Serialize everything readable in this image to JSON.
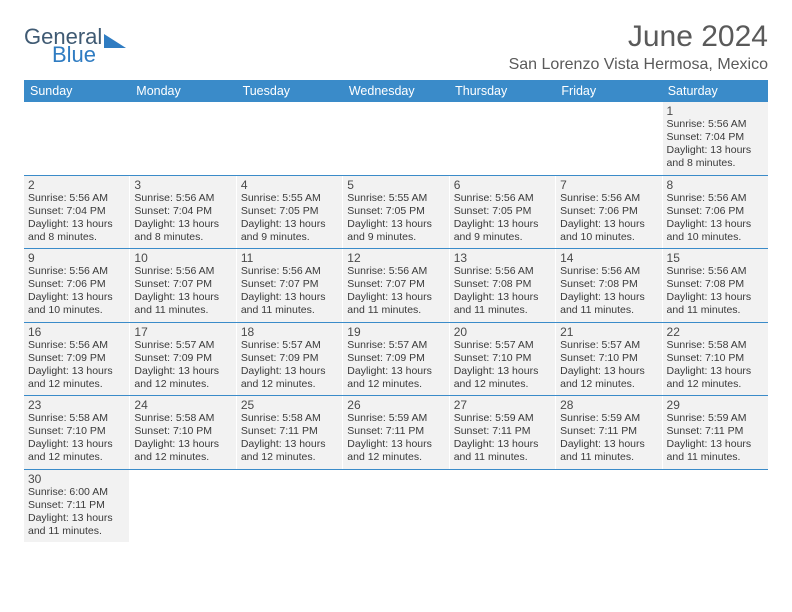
{
  "logo": {
    "line1": "General",
    "line2": "Blue"
  },
  "title": "June 2024",
  "location": "San Lorenzo Vista Hermosa, Mexico",
  "colors": {
    "header_bg": "#3a8bc9",
    "header_text": "#ffffff",
    "cell_bg": "#f2f2f2",
    "rule": "#3a8bc9",
    "logo_primary": "#3f5a73",
    "logo_accent": "#2f7cc2"
  },
  "day_labels": [
    "Sunday",
    "Monday",
    "Tuesday",
    "Wednesday",
    "Thursday",
    "Friday",
    "Saturday"
  ],
  "weeks": [
    [
      null,
      null,
      null,
      null,
      null,
      null,
      {
        "n": "1",
        "sr": "Sunrise: 5:56 AM",
        "ss": "Sunset: 7:04 PM",
        "d1": "Daylight: 13 hours",
        "d2": "and 8 minutes."
      }
    ],
    [
      {
        "n": "2",
        "sr": "Sunrise: 5:56 AM",
        "ss": "Sunset: 7:04 PM",
        "d1": "Daylight: 13 hours",
        "d2": "and 8 minutes."
      },
      {
        "n": "3",
        "sr": "Sunrise: 5:56 AM",
        "ss": "Sunset: 7:04 PM",
        "d1": "Daylight: 13 hours",
        "d2": "and 8 minutes."
      },
      {
        "n": "4",
        "sr": "Sunrise: 5:55 AM",
        "ss": "Sunset: 7:05 PM",
        "d1": "Daylight: 13 hours",
        "d2": "and 9 minutes."
      },
      {
        "n": "5",
        "sr": "Sunrise: 5:55 AM",
        "ss": "Sunset: 7:05 PM",
        "d1": "Daylight: 13 hours",
        "d2": "and 9 minutes."
      },
      {
        "n": "6",
        "sr": "Sunrise: 5:56 AM",
        "ss": "Sunset: 7:05 PM",
        "d1": "Daylight: 13 hours",
        "d2": "and 9 minutes."
      },
      {
        "n": "7",
        "sr": "Sunrise: 5:56 AM",
        "ss": "Sunset: 7:06 PM",
        "d1": "Daylight: 13 hours",
        "d2": "and 10 minutes."
      },
      {
        "n": "8",
        "sr": "Sunrise: 5:56 AM",
        "ss": "Sunset: 7:06 PM",
        "d1": "Daylight: 13 hours",
        "d2": "and 10 minutes."
      }
    ],
    [
      {
        "n": "9",
        "sr": "Sunrise: 5:56 AM",
        "ss": "Sunset: 7:06 PM",
        "d1": "Daylight: 13 hours",
        "d2": "and 10 minutes."
      },
      {
        "n": "10",
        "sr": "Sunrise: 5:56 AM",
        "ss": "Sunset: 7:07 PM",
        "d1": "Daylight: 13 hours",
        "d2": "and 11 minutes."
      },
      {
        "n": "11",
        "sr": "Sunrise: 5:56 AM",
        "ss": "Sunset: 7:07 PM",
        "d1": "Daylight: 13 hours",
        "d2": "and 11 minutes."
      },
      {
        "n": "12",
        "sr": "Sunrise: 5:56 AM",
        "ss": "Sunset: 7:07 PM",
        "d1": "Daylight: 13 hours",
        "d2": "and 11 minutes."
      },
      {
        "n": "13",
        "sr": "Sunrise: 5:56 AM",
        "ss": "Sunset: 7:08 PM",
        "d1": "Daylight: 13 hours",
        "d2": "and 11 minutes."
      },
      {
        "n": "14",
        "sr": "Sunrise: 5:56 AM",
        "ss": "Sunset: 7:08 PM",
        "d1": "Daylight: 13 hours",
        "d2": "and 11 minutes."
      },
      {
        "n": "15",
        "sr": "Sunrise: 5:56 AM",
        "ss": "Sunset: 7:08 PM",
        "d1": "Daylight: 13 hours",
        "d2": "and 11 minutes."
      }
    ],
    [
      {
        "n": "16",
        "sr": "Sunrise: 5:56 AM",
        "ss": "Sunset: 7:09 PM",
        "d1": "Daylight: 13 hours",
        "d2": "and 12 minutes."
      },
      {
        "n": "17",
        "sr": "Sunrise: 5:57 AM",
        "ss": "Sunset: 7:09 PM",
        "d1": "Daylight: 13 hours",
        "d2": "and 12 minutes."
      },
      {
        "n": "18",
        "sr": "Sunrise: 5:57 AM",
        "ss": "Sunset: 7:09 PM",
        "d1": "Daylight: 13 hours",
        "d2": "and 12 minutes."
      },
      {
        "n": "19",
        "sr": "Sunrise: 5:57 AM",
        "ss": "Sunset: 7:09 PM",
        "d1": "Daylight: 13 hours",
        "d2": "and 12 minutes."
      },
      {
        "n": "20",
        "sr": "Sunrise: 5:57 AM",
        "ss": "Sunset: 7:10 PM",
        "d1": "Daylight: 13 hours",
        "d2": "and 12 minutes."
      },
      {
        "n": "21",
        "sr": "Sunrise: 5:57 AM",
        "ss": "Sunset: 7:10 PM",
        "d1": "Daylight: 13 hours",
        "d2": "and 12 minutes."
      },
      {
        "n": "22",
        "sr": "Sunrise: 5:58 AM",
        "ss": "Sunset: 7:10 PM",
        "d1": "Daylight: 13 hours",
        "d2": "and 12 minutes."
      }
    ],
    [
      {
        "n": "23",
        "sr": "Sunrise: 5:58 AM",
        "ss": "Sunset: 7:10 PM",
        "d1": "Daylight: 13 hours",
        "d2": "and 12 minutes."
      },
      {
        "n": "24",
        "sr": "Sunrise: 5:58 AM",
        "ss": "Sunset: 7:10 PM",
        "d1": "Daylight: 13 hours",
        "d2": "and 12 minutes."
      },
      {
        "n": "25",
        "sr": "Sunrise: 5:58 AM",
        "ss": "Sunset: 7:11 PM",
        "d1": "Daylight: 13 hours",
        "d2": "and 12 minutes."
      },
      {
        "n": "26",
        "sr": "Sunrise: 5:59 AM",
        "ss": "Sunset: 7:11 PM",
        "d1": "Daylight: 13 hours",
        "d2": "and 12 minutes."
      },
      {
        "n": "27",
        "sr": "Sunrise: 5:59 AM",
        "ss": "Sunset: 7:11 PM",
        "d1": "Daylight: 13 hours",
        "d2": "and 11 minutes."
      },
      {
        "n": "28",
        "sr": "Sunrise: 5:59 AM",
        "ss": "Sunset: 7:11 PM",
        "d1": "Daylight: 13 hours",
        "d2": "and 11 minutes."
      },
      {
        "n": "29",
        "sr": "Sunrise: 5:59 AM",
        "ss": "Sunset: 7:11 PM",
        "d1": "Daylight: 13 hours",
        "d2": "and 11 minutes."
      }
    ],
    [
      {
        "n": "30",
        "sr": "Sunrise: 6:00 AM",
        "ss": "Sunset: 7:11 PM",
        "d1": "Daylight: 13 hours",
        "d2": "and 11 minutes."
      },
      null,
      null,
      null,
      null,
      null,
      null
    ]
  ]
}
